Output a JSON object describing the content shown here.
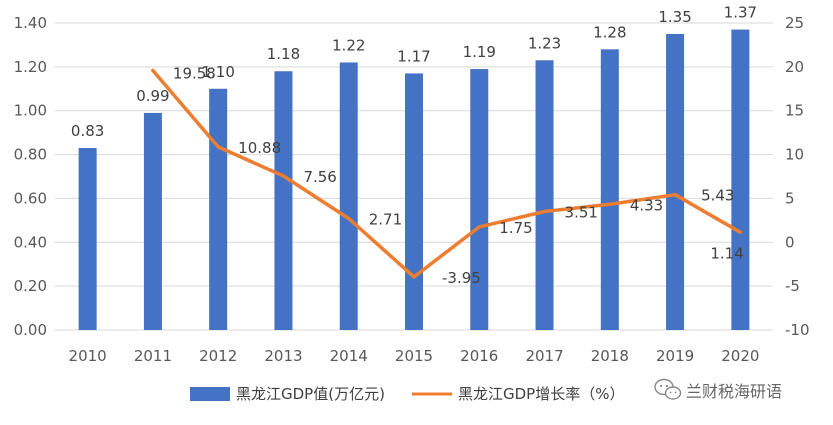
{
  "chart_data": {
    "type": "bar",
    "categories": [
      "2010",
      "2011",
      "2012",
      "2013",
      "2014",
      "2015",
      "2016",
      "2017",
      "2018",
      "2019",
      "2020"
    ],
    "series": [
      {
        "name": "黑龙江GDP值(万亿元)",
        "type": "bar",
        "axis": "left",
        "color": "#4472C4",
        "values": [
          0.83,
          0.99,
          1.1,
          1.18,
          1.22,
          1.17,
          1.19,
          1.23,
          1.28,
          1.35,
          1.37
        ],
        "labels": [
          "0.83",
          "0.99",
          "1.10",
          "1.18",
          "1.22",
          "1.17",
          "1.19",
          "1.23",
          "1.28",
          "1.35",
          "1.37"
        ]
      },
      {
        "name": "黑龙江GDP增长率（%）",
        "type": "line",
        "axis": "right",
        "color": "#ED7D31",
        "values": [
          null,
          19.58,
          10.88,
          7.56,
          2.71,
          -3.95,
          1.75,
          3.51,
          4.33,
          5.43,
          1.14
        ],
        "labels": [
          "",
          "19.58",
          "10.88",
          "7.56",
          "2.71",
          "-3.95",
          "1.75",
          "3.51",
          "4.33",
          "5.43",
          "1.14"
        ]
      }
    ],
    "y_left": {
      "ylim": [
        0,
        1.4
      ],
      "ticks": [
        "0.00",
        "0.20",
        "0.40",
        "0.60",
        "0.80",
        "1.00",
        "1.20",
        "1.40"
      ]
    },
    "y_right": {
      "ylim": [
        -10,
        25
      ],
      "ticks": [
        "-10",
        "-5",
        "0",
        "5",
        "10",
        "15",
        "20",
        "25"
      ]
    },
    "legend_position": "bottom",
    "grid": true
  },
  "watermark": {
    "icon": "wechat-icon",
    "text": "兰财税海研语"
  }
}
